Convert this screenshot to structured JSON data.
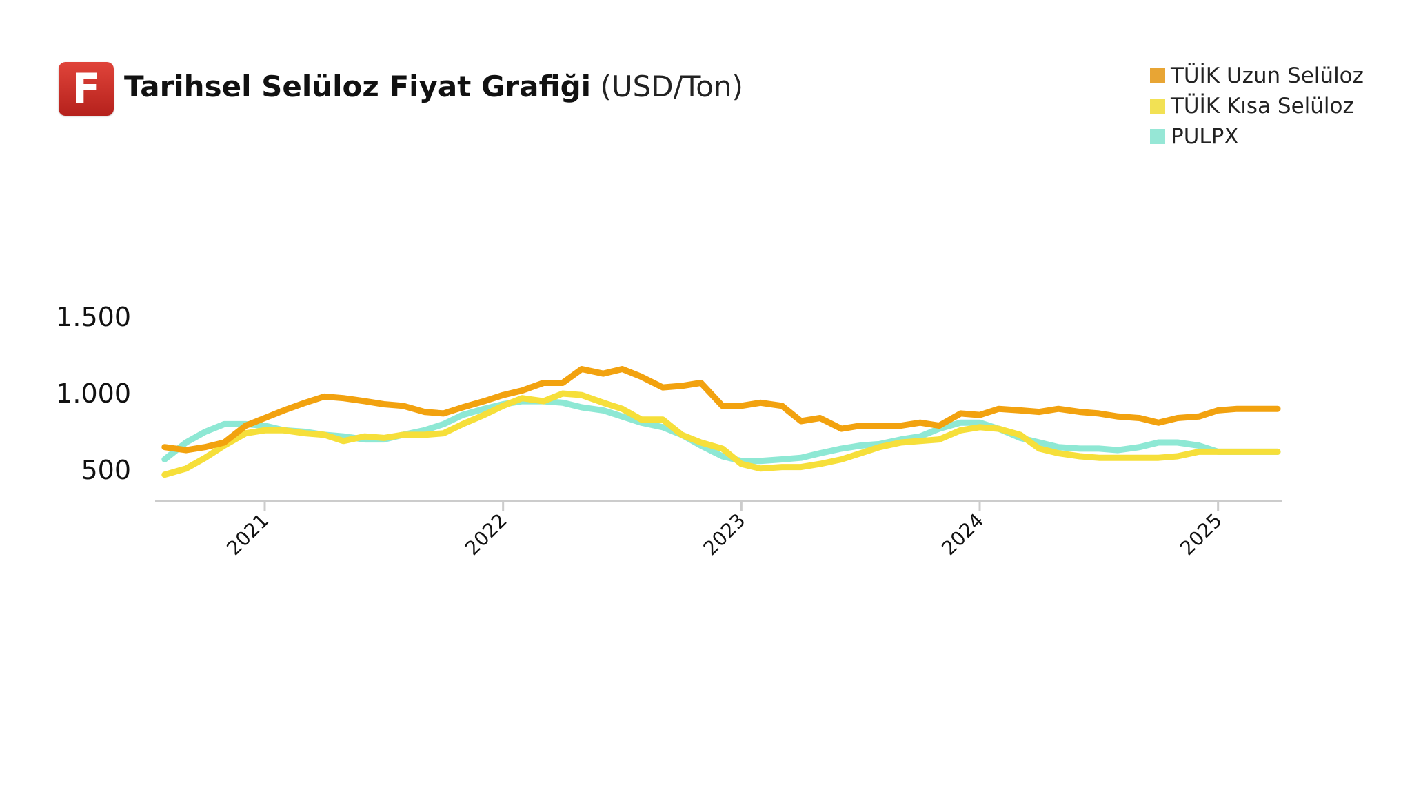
{
  "header": {
    "logo_letter": "F",
    "title_bold": "Tarihsel Selüloz Fiyat Grafiği",
    "title_unit": "(USD/Ton)"
  },
  "chart_data": {
    "type": "line",
    "title": "Tarihsel Selüloz Fiyat Grafiği (USD/Ton)",
    "xlabel": "",
    "ylabel": "",
    "ylim": [
      400,
      1500
    ],
    "xlim": [
      2020.54,
      2025.27
    ],
    "y_ticks": [
      500,
      1000,
      1500
    ],
    "y_tick_labels": [
      "500",
      "1.000",
      "1.500"
    ],
    "x_ticks": [
      2021,
      2022,
      2023,
      2024,
      2025
    ],
    "x_tick_labels": [
      "2021",
      "2022",
      "2023",
      "2024",
      "2025"
    ],
    "legend_position": "top-right",
    "series": [
      {
        "name": "TÜİK Uzun Selüloz",
        "color": "#f2a20f",
        "legend_color": "#e8a534",
        "points": [
          [
            2020.58,
            650
          ],
          [
            2020.67,
            630
          ],
          [
            2020.75,
            650
          ],
          [
            2020.83,
            680
          ],
          [
            2020.92,
            790
          ],
          [
            2021.0,
            840
          ],
          [
            2021.08,
            890
          ],
          [
            2021.17,
            940
          ],
          [
            2021.25,
            980
          ],
          [
            2021.33,
            970
          ],
          [
            2021.42,
            950
          ],
          [
            2021.5,
            930
          ],
          [
            2021.58,
            920
          ],
          [
            2021.67,
            880
          ],
          [
            2021.75,
            870
          ],
          [
            2021.83,
            910
          ],
          [
            2021.92,
            950
          ],
          [
            2022.0,
            990
          ],
          [
            2022.08,
            1020
          ],
          [
            2022.17,
            1070
          ],
          [
            2022.25,
            1070
          ],
          [
            2022.33,
            1160
          ],
          [
            2022.42,
            1130
          ],
          [
            2022.5,
            1160
          ],
          [
            2022.58,
            1110
          ],
          [
            2022.67,
            1040
          ],
          [
            2022.75,
            1050
          ],
          [
            2022.83,
            1070
          ],
          [
            2022.92,
            920
          ],
          [
            2023.0,
            920
          ],
          [
            2023.08,
            940
          ],
          [
            2023.17,
            920
          ],
          [
            2023.25,
            820
          ],
          [
            2023.33,
            840
          ],
          [
            2023.42,
            770
          ],
          [
            2023.5,
            790
          ],
          [
            2023.58,
            790
          ],
          [
            2023.67,
            790
          ],
          [
            2023.75,
            810
          ],
          [
            2023.83,
            790
          ],
          [
            2023.92,
            870
          ],
          [
            2024.0,
            860
          ],
          [
            2024.08,
            900
          ],
          [
            2024.17,
            890
          ],
          [
            2024.25,
            880
          ],
          [
            2024.33,
            900
          ],
          [
            2024.42,
            880
          ],
          [
            2024.5,
            870
          ],
          [
            2024.58,
            850
          ],
          [
            2024.67,
            840
          ],
          [
            2024.75,
            810
          ],
          [
            2024.83,
            840
          ],
          [
            2024.92,
            850
          ],
          [
            2025.0,
            890
          ],
          [
            2025.08,
            900
          ],
          [
            2025.25,
            900
          ]
        ]
      },
      {
        "name": "TÜİK Kısa Selüloz",
        "color": "#f6df3a",
        "legend_color": "#f2e154",
        "points": [
          [
            2020.58,
            470
          ],
          [
            2020.67,
            510
          ],
          [
            2020.75,
            580
          ],
          [
            2020.83,
            660
          ],
          [
            2020.92,
            740
          ],
          [
            2021.0,
            760
          ],
          [
            2021.08,
            760
          ],
          [
            2021.17,
            740
          ],
          [
            2021.25,
            730
          ],
          [
            2021.33,
            690
          ],
          [
            2021.42,
            720
          ],
          [
            2021.5,
            710
          ],
          [
            2021.58,
            730
          ],
          [
            2021.67,
            730
          ],
          [
            2021.75,
            740
          ],
          [
            2021.83,
            800
          ],
          [
            2021.92,
            860
          ],
          [
            2022.0,
            920
          ],
          [
            2022.08,
            970
          ],
          [
            2022.17,
            950
          ],
          [
            2022.25,
            1000
          ],
          [
            2022.33,
            990
          ],
          [
            2022.42,
            940
          ],
          [
            2022.5,
            900
          ],
          [
            2022.58,
            830
          ],
          [
            2022.67,
            830
          ],
          [
            2022.75,
            730
          ],
          [
            2022.83,
            680
          ],
          [
            2022.92,
            640
          ],
          [
            2023.0,
            540
          ],
          [
            2023.08,
            510
          ],
          [
            2023.17,
            520
          ],
          [
            2023.25,
            520
          ],
          [
            2023.33,
            540
          ],
          [
            2023.42,
            570
          ],
          [
            2023.5,
            610
          ],
          [
            2023.58,
            650
          ],
          [
            2023.67,
            680
          ],
          [
            2023.75,
            690
          ],
          [
            2023.83,
            700
          ],
          [
            2023.92,
            760
          ],
          [
            2024.0,
            780
          ],
          [
            2024.08,
            770
          ],
          [
            2024.17,
            730
          ],
          [
            2024.25,
            640
          ],
          [
            2024.33,
            610
          ],
          [
            2024.42,
            590
          ],
          [
            2024.5,
            580
          ],
          [
            2024.58,
            580
          ],
          [
            2024.67,
            580
          ],
          [
            2024.75,
            580
          ],
          [
            2024.83,
            590
          ],
          [
            2024.92,
            620
          ],
          [
            2025.0,
            620
          ],
          [
            2025.25,
            620
          ]
        ]
      },
      {
        "name": "PULPX",
        "color": "#8ee8d4",
        "legend_color": "#96e7d6",
        "points": [
          [
            2020.58,
            570
          ],
          [
            2020.67,
            680
          ],
          [
            2020.75,
            750
          ],
          [
            2020.83,
            800
          ],
          [
            2020.92,
            800
          ],
          [
            2021.0,
            790
          ],
          [
            2021.08,
            760
          ],
          [
            2021.17,
            750
          ],
          [
            2021.25,
            730
          ],
          [
            2021.33,
            720
          ],
          [
            2021.42,
            700
          ],
          [
            2021.5,
            700
          ],
          [
            2021.58,
            730
          ],
          [
            2021.67,
            760
          ],
          [
            2021.75,
            800
          ],
          [
            2021.83,
            860
          ],
          [
            2021.92,
            900
          ],
          [
            2022.0,
            930
          ],
          [
            2022.08,
            950
          ],
          [
            2022.17,
            950
          ],
          [
            2022.25,
            940
          ],
          [
            2022.33,
            910
          ],
          [
            2022.42,
            890
          ],
          [
            2022.5,
            850
          ],
          [
            2022.58,
            810
          ],
          [
            2022.67,
            780
          ],
          [
            2022.75,
            730
          ],
          [
            2022.83,
            660
          ],
          [
            2022.92,
            590
          ],
          [
            2023.0,
            560
          ],
          [
            2023.08,
            560
          ],
          [
            2023.17,
            570
          ],
          [
            2023.25,
            580
          ],
          [
            2023.33,
            610
          ],
          [
            2023.42,
            640
          ],
          [
            2023.5,
            660
          ],
          [
            2023.58,
            670
          ],
          [
            2023.67,
            700
          ],
          [
            2023.75,
            720
          ],
          [
            2023.83,
            770
          ],
          [
            2023.92,
            810
          ],
          [
            2024.0,
            810
          ],
          [
            2024.08,
            770
          ],
          [
            2024.17,
            710
          ],
          [
            2024.25,
            680
          ],
          [
            2024.33,
            650
          ],
          [
            2024.42,
            640
          ],
          [
            2024.5,
            640
          ],
          [
            2024.58,
            630
          ],
          [
            2024.67,
            650
          ],
          [
            2024.75,
            680
          ],
          [
            2024.83,
            680
          ],
          [
            2024.92,
            660
          ],
          [
            2025.0,
            620
          ],
          [
            2025.25,
            620
          ]
        ]
      }
    ]
  }
}
